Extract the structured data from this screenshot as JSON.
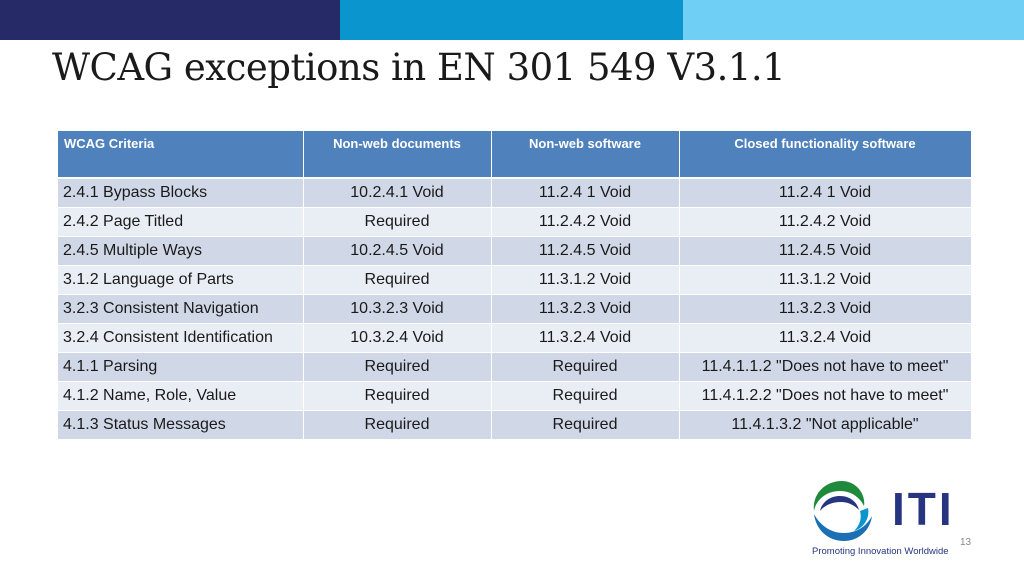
{
  "title": "WCAG exceptions in EN 301 549 V3.1.1",
  "table": {
    "headers": [
      "WCAG Criteria",
      "Non-web documents",
      "Non-web software",
      "Closed functionality software"
    ],
    "rows": [
      [
        "2.4.1 Bypass Blocks",
        "10.2.4.1 Void",
        "11.2.4 1 Void",
        "11.2.4 1 Void"
      ],
      [
        "2.4.2 Page Titled",
        "Required",
        "11.2.4.2 Void",
        "11.2.4.2 Void"
      ],
      [
        "2.4.5 Multiple Ways",
        "10.2.4.5 Void",
        "11.2.4.5 Void",
        "11.2.4.5 Void"
      ],
      [
        "3.1.2 Language of Parts",
        "Required",
        "11.3.1.2 Void",
        "11.3.1.2 Void"
      ],
      [
        "3.2.3 Consistent Navigation",
        "10.3.2.3 Void",
        "11.3.2.3 Void",
        "11.3.2.3 Void"
      ],
      [
        "3.2.4 Consistent Identification",
        "10.3.2.4 Void",
        "11.3.2.4 Void",
        "11.3.2.4 Void"
      ],
      [
        "4.1.1 Parsing",
        "Required",
        "Required",
        "11.4.1.1.2 \"Does not have to meet\""
      ],
      [
        "4.1.2 Name, Role, Value",
        "Required",
        "Required",
        "11.4.1.2.2 \"Does not have to meet\""
      ],
      [
        "4.1.3 Status Messages",
        "Required",
        "Required",
        "11.4.1.3.2 \"Not applicable\""
      ]
    ]
  },
  "logo": {
    "text": "ITI",
    "tagline": "Promoting Innovation Worldwide"
  },
  "page_number": "13",
  "colors": {
    "band_dark": "#262a66",
    "band_mid": "#0a95cf",
    "band_light": "#6fcff4",
    "header": "#4f81bd"
  }
}
